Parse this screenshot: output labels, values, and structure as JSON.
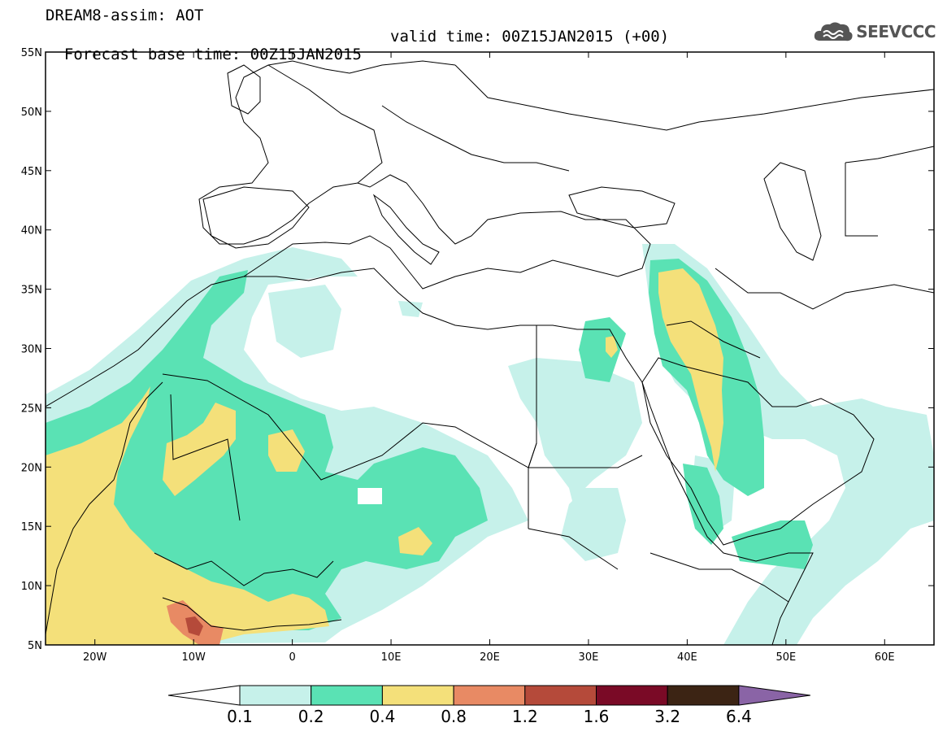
{
  "title": {
    "line1": "DREAM8-assim: AOT",
    "base_time": "Forecast base time: 00Z15JAN2015",
    "valid_time": "valid time: 00Z15JAN2015 (+00)"
  },
  "logo": {
    "text": "SEEVCCC",
    "icon": "cloud-logo-icon"
  },
  "map": {
    "projection": "equirectangular",
    "lon_range": [
      -25,
      65
    ],
    "lat_range": [
      5,
      55
    ],
    "lat_ticks": [
      "5N",
      "10N",
      "15N",
      "20N",
      "25N",
      "30N",
      "35N",
      "40N",
      "45N",
      "50N",
      "55N"
    ],
    "lon_ticks": [
      "20W",
      "10W",
      "0",
      "10E",
      "20E",
      "30E",
      "40E",
      "50E",
      "60E"
    ],
    "field": "Aerosol optical thickness (AOT)"
  },
  "colorbar": {
    "levels": [
      "0.1",
      "0.2",
      "0.4",
      "0.8",
      "1.2",
      "1.6",
      "3.2",
      "6.4"
    ],
    "colors": [
      "#ffffff",
      "#c6f1ea",
      "#5ae2b4",
      "#f4e07a",
      "#e88a64",
      "#b54a3a",
      "#7a0a26",
      "#3c2414",
      "#8a64a6"
    ]
  }
}
